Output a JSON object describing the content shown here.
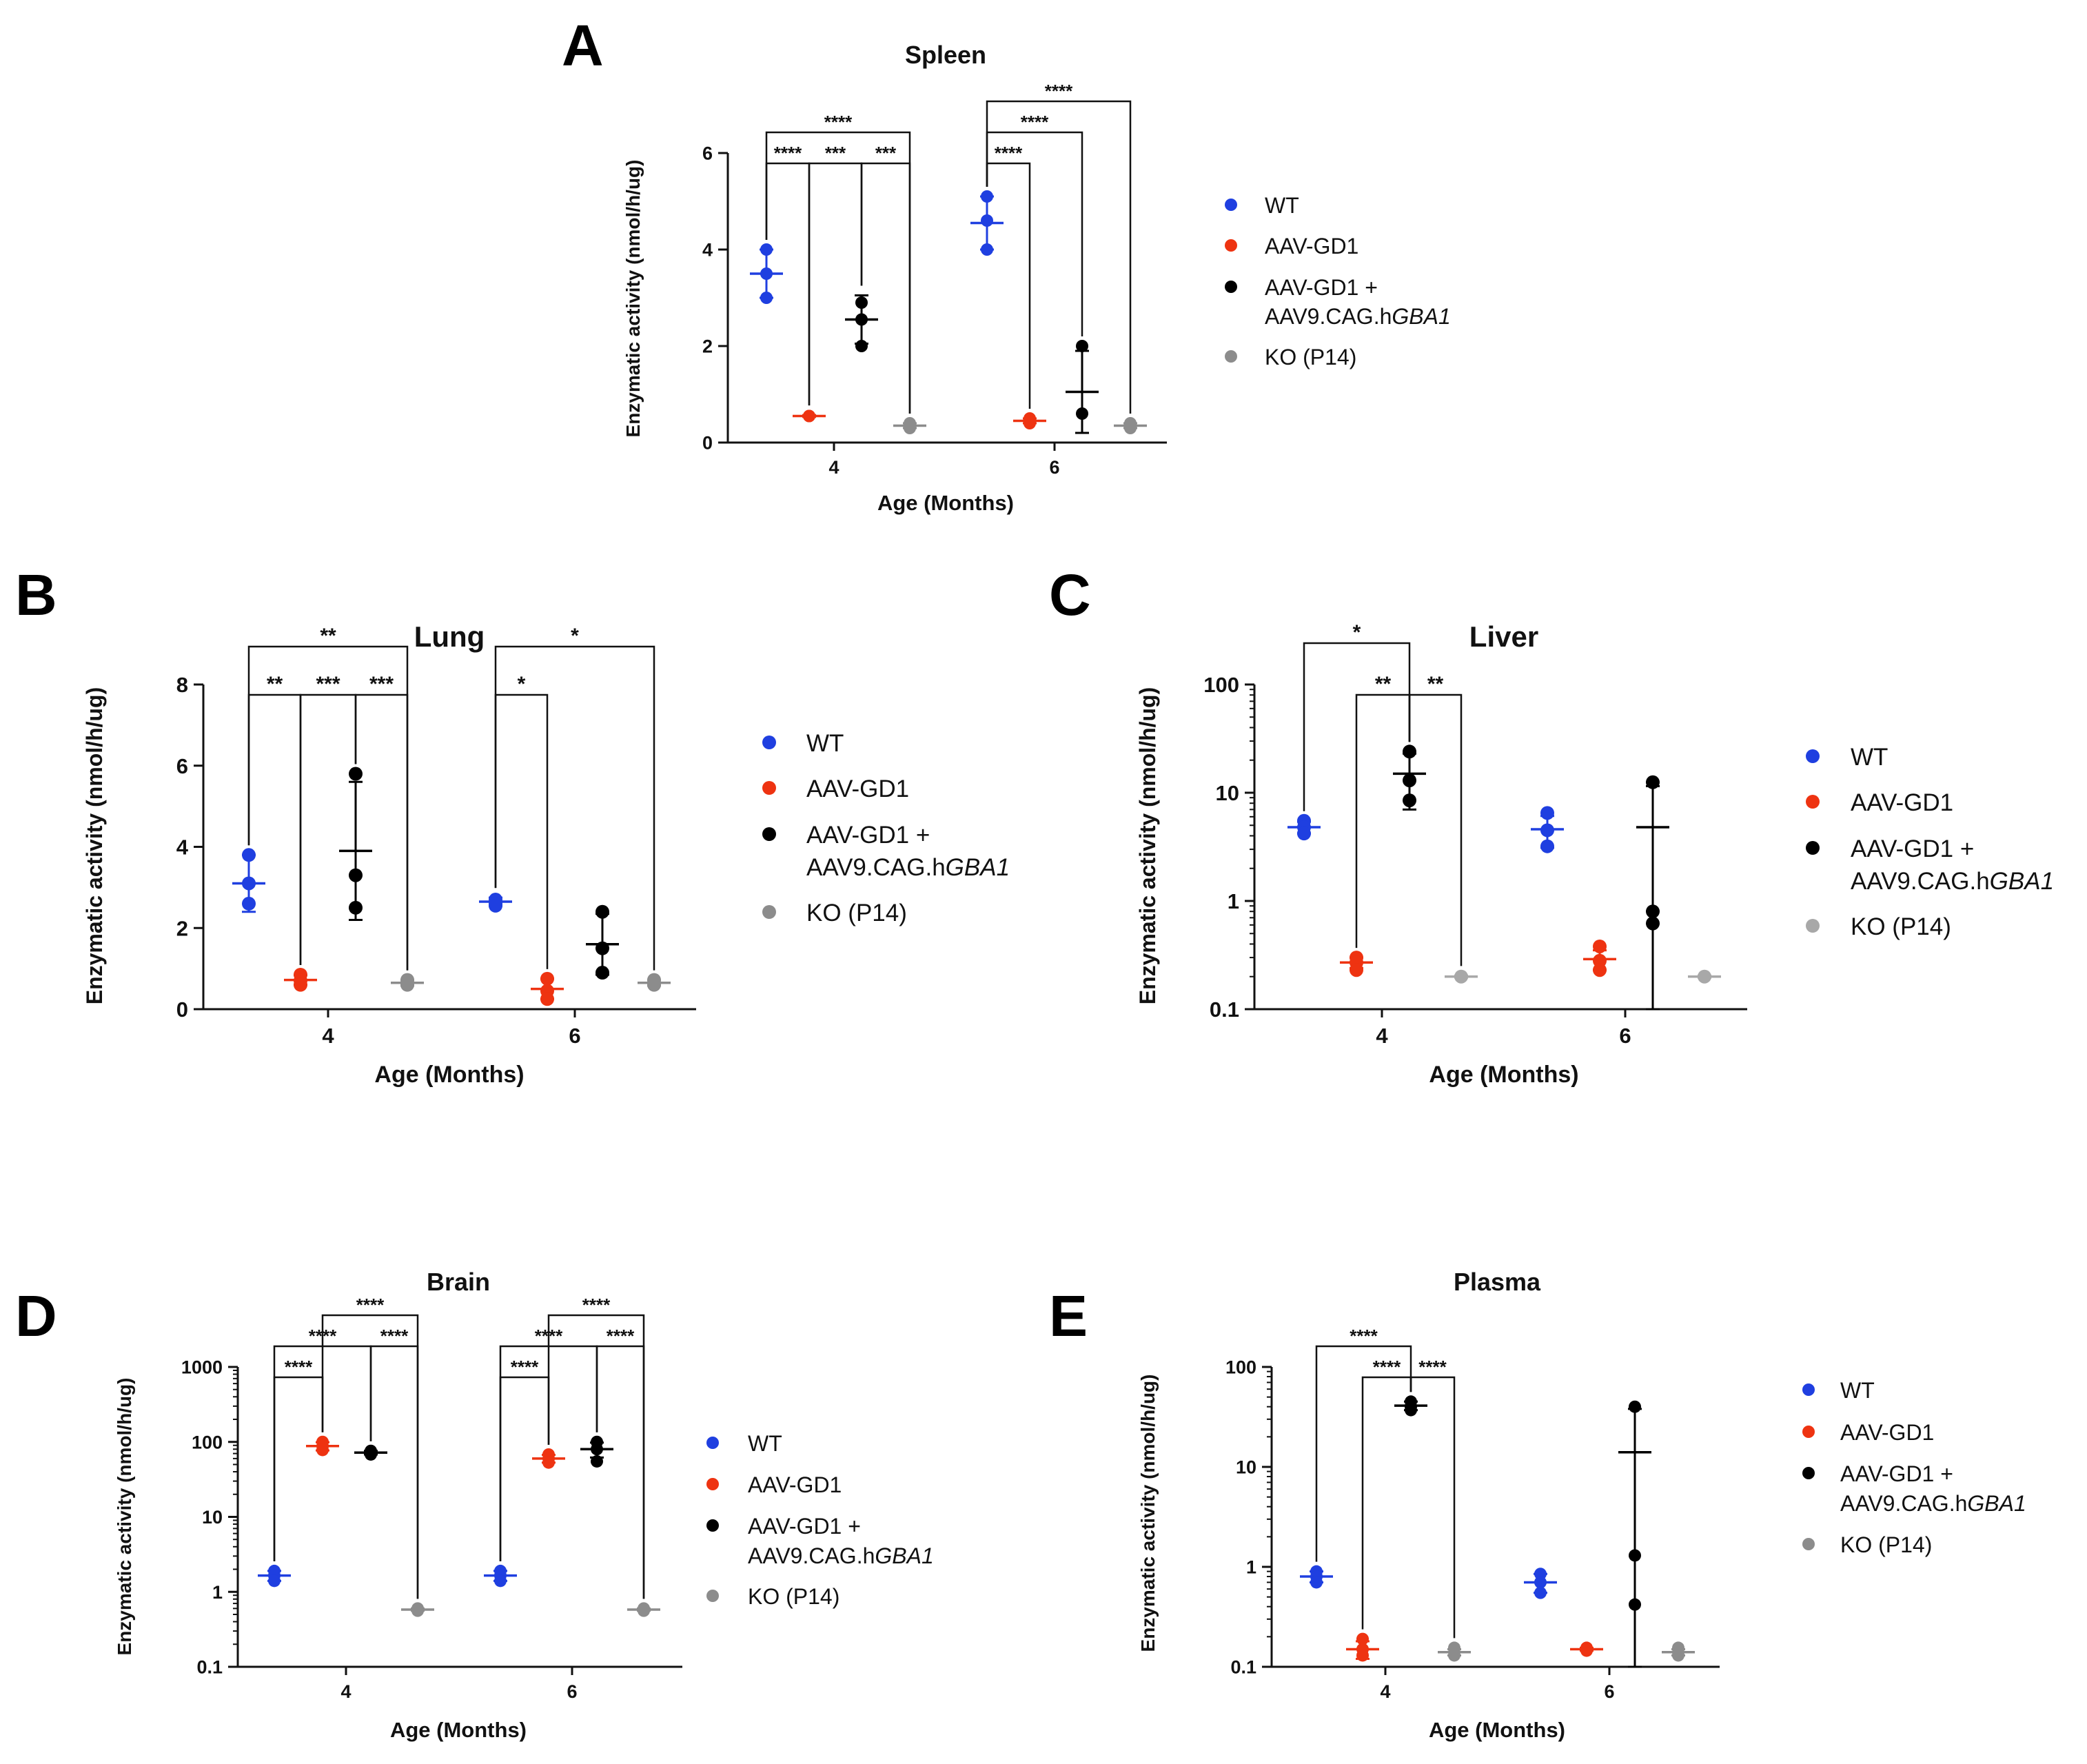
{
  "chart_data": [
    {
      "id": "A",
      "panel": "A",
      "type": "scatter",
      "title": "Spleen",
      "xlabel": "Age (Months)",
      "ylabel": "Enzymatic activity (nmol/h/ug)",
      "yscale": "linear",
      "ylim": [
        0,
        6
      ],
      "yticks": [
        0,
        2,
        4,
        6
      ],
      "ytick_labels": [
        "0",
        "2",
        "4",
        "6"
      ],
      "categories": [
        "4",
        "6"
      ],
      "series": [
        {
          "name": "WT",
          "color": "#1f3fe0",
          "groups": [
            {
              "points": [
                4.0,
                3.5,
                3.0
              ],
              "mean": 3.5,
              "err": 0.5
            },
            {
              "points": [
                5.1,
                4.6,
                4.0
              ],
              "mean": 4.55,
              "err": 0.55
            }
          ]
        },
        {
          "name": "AAV-GD1",
          "color": "#ee3311",
          "groups": [
            {
              "points": [
                0.55,
                0.55,
                0.55
              ],
              "mean": 0.55,
              "err": 0.02
            },
            {
              "points": [
                0.5,
                0.45,
                0.4
              ],
              "mean": 0.45,
              "err": 0.05
            }
          ]
        },
        {
          "name": "AAV-GD1 + AAV9.CAG.hGBA1",
          "color": "#000000",
          "groups": [
            {
              "points": [
                2.9,
                2.55,
                2.0
              ],
              "mean": 2.55,
              "err": 0.5
            },
            {
              "points": [
                2.0,
                0.6
              ],
              "mean": 1.05,
              "err": 0.85
            }
          ]
        },
        {
          "name": "KO (P14)",
          "color": "#8c8c8c",
          "groups": [
            {
              "points": [
                0.4,
                0.35,
                0.3
              ],
              "mean": 0.35,
              "err": 0.05
            },
            {
              "points": [
                0.4,
                0.35,
                0.3
              ],
              "mean": 0.35,
              "err": 0.05
            }
          ]
        }
      ],
      "annotations": [
        {
          "label": "****",
          "from": [
            0,
            0
          ],
          "to": [
            0,
            3
          ],
          "level": 0
        },
        {
          "label": "****",
          "from": [
            0,
            0
          ],
          "to": [
            0,
            1
          ],
          "level": 1
        },
        {
          "label": "***",
          "from": [
            0,
            1
          ],
          "to": [
            0,
            2
          ],
          "level": 1
        },
        {
          "label": "***",
          "from": [
            0,
            2
          ],
          "to": [
            0,
            3
          ],
          "level": 1
        },
        {
          "label": "****",
          "from": [
            1,
            0
          ],
          "to": [
            1,
            3
          ],
          "level": 0
        },
        {
          "label": "****",
          "from": [
            1,
            0
          ],
          "to": [
            1,
            2
          ],
          "level": 1
        },
        {
          "label": "****",
          "from": [
            1,
            0
          ],
          "to": [
            1,
            1
          ],
          "level": 2
        }
      ],
      "legend_labels": [
        "WT",
        "AAV-GD1",
        "AAV-GD1 +",
        "AAV9.CAG.h",
        "GBA1",
        "KO (P14)"
      ]
    },
    {
      "id": "B",
      "panel": "B",
      "type": "scatter",
      "title": "Lung",
      "xlabel": "Age (Months)",
      "ylabel": "Enzymatic activity (nmol/h/ug)",
      "yscale": "linear",
      "ylim": [
        0,
        8
      ],
      "yticks": [
        0,
        2,
        4,
        6,
        8
      ],
      "ytick_labels": [
        "0",
        "2",
        "4",
        "6",
        "8"
      ],
      "categories": [
        "4",
        "6"
      ],
      "series": [
        {
          "name": "WT",
          "color": "#1f3fe0",
          "groups": [
            {
              "points": [
                3.8,
                3.1,
                2.6
              ],
              "mean": 3.1,
              "err": 0.7
            },
            {
              "points": [
                2.7,
                2.6,
                2.55
              ],
              "mean": 2.65,
              "err": 0.1
            }
          ]
        },
        {
          "name": "AAV-GD1",
          "color": "#ee3311",
          "groups": [
            {
              "points": [
                0.85,
                0.7,
                0.6
              ],
              "mean": 0.72,
              "err": 0.12
            },
            {
              "points": [
                0.75,
                0.45,
                0.25
              ],
              "mean": 0.5,
              "err": 0.25
            }
          ]
        },
        {
          "name": "AAV-GD1 + AAV9.CAG.hGBA1",
          "color": "#000000",
          "groups": [
            {
              "points": [
                5.8,
                3.3,
                2.5
              ],
              "mean": 3.9,
              "err": 1.7
            },
            {
              "points": [
                2.4,
                1.5,
                0.9
              ],
              "mean": 1.6,
              "err": 0.75
            }
          ]
        },
        {
          "name": "KO (P14)",
          "color": "#8c8c8c",
          "groups": [
            {
              "points": [
                0.72,
                0.65,
                0.6
              ],
              "mean": 0.65,
              "err": 0.07
            },
            {
              "points": [
                0.72,
                0.65,
                0.6
              ],
              "mean": 0.65,
              "err": 0.07
            }
          ]
        }
      ],
      "annotations": [
        {
          "label": "**",
          "from": [
            0,
            0
          ],
          "to": [
            0,
            3
          ],
          "level": 0
        },
        {
          "label": "**",
          "from": [
            0,
            0
          ],
          "to": [
            0,
            1
          ],
          "level": 1
        },
        {
          "label": "***",
          "from": [
            0,
            1
          ],
          "to": [
            0,
            2
          ],
          "level": 1
        },
        {
          "label": "***",
          "from": [
            0,
            2
          ],
          "to": [
            0,
            3
          ],
          "level": 1
        },
        {
          "label": "*",
          "from": [
            1,
            0
          ],
          "to": [
            1,
            3
          ],
          "level": 0
        },
        {
          "label": "*",
          "from": [
            1,
            0
          ],
          "to": [
            1,
            1
          ],
          "level": 1
        }
      ],
      "legend_labels": [
        "WT",
        "AAV-GD1",
        "AAV-GD1 +",
        "AAV9.CAG.h",
        "GBA1",
        "KO (P14)"
      ]
    },
    {
      "id": "C",
      "panel": "C",
      "type": "scatter",
      "title": "Liver",
      "xlabel": "Age (Months)",
      "ylabel": "Enzymatic activity (nmol/h/ug)",
      "yscale": "log",
      "ylim": [
        0.1,
        100
      ],
      "yticks": [
        0.1,
        1,
        10,
        100
      ],
      "ytick_labels": [
        "0.1",
        "1",
        "10",
        "100"
      ],
      "categories": [
        "4",
        "6"
      ],
      "series": [
        {
          "name": "WT",
          "color": "#1f3fe0",
          "groups": [
            {
              "points": [
                5.5,
                4.8,
                4.2
              ],
              "mean": 4.8,
              "err": 0.6
            },
            {
              "points": [
                6.5,
                4.5,
                3.2
              ],
              "mean": 4.6,
              "err": 1.5
            }
          ]
        },
        {
          "name": "AAV-GD1",
          "color": "#ee3311",
          "groups": [
            {
              "points": [
                0.3,
                0.27,
                0.23
              ],
              "mean": 0.27,
              "err": 0.03
            },
            {
              "points": [
                0.38,
                0.28,
                0.23
              ],
              "mean": 0.29,
              "err": 0.06
            }
          ]
        },
        {
          "name": "AAV-GD1 + AAV9.CAG.hGBA1",
          "color": "#000000",
          "groups": [
            {
              "points": [
                24,
                13,
                8.5
              ],
              "mean": 15,
              "err": 8
            },
            {
              "points": [
                12.5,
                0.8,
                0.62
              ],
              "mean": 4.8,
              "err": 6.7
            }
          ]
        },
        {
          "name": "KO (P14)",
          "color": "#a8a8a8",
          "groups": [
            {
              "points": [
                0.2
              ],
              "mean": 0.2,
              "err": 0.004
            },
            {
              "points": [
                0.2
              ],
              "mean": 0.2,
              "err": 0.004
            }
          ]
        }
      ],
      "annotations": [
        {
          "label": "*",
          "from": [
            0,
            0
          ],
          "to": [
            0,
            2
          ],
          "level": 0
        },
        {
          "label": "**",
          "from": [
            0,
            1
          ],
          "to": [
            0,
            2
          ],
          "level": 1
        },
        {
          "label": "**",
          "from": [
            0,
            2
          ],
          "to": [
            0,
            3
          ],
          "level": 1
        }
      ],
      "legend_labels": [
        "WT",
        "AAV-GD1",
        "AAV-GD1 +",
        "AAV9.CAG.h",
        "GBA1",
        "KO (P14)"
      ]
    },
    {
      "id": "D",
      "panel": "D",
      "type": "scatter",
      "title": "Brain",
      "xlabel": "Age (Months)",
      "ylabel": "Enzymatic activity (nmol/h/ug)",
      "yscale": "log",
      "ylim": [
        0.1,
        1000
      ],
      "yticks": [
        0.1,
        1,
        10,
        100,
        1000
      ],
      "ytick_labels": [
        "0.1",
        "1",
        "10",
        "100",
        "1000"
      ],
      "categories": [
        "4",
        "6"
      ],
      "series": [
        {
          "name": "WT",
          "color": "#1f3fe0",
          "groups": [
            {
              "points": [
                1.9,
                1.65,
                1.4
              ],
              "mean": 1.65,
              "err": 0.25
            },
            {
              "points": [
                1.9,
                1.65,
                1.4
              ],
              "mean": 1.65,
              "err": 0.25
            }
          ]
        },
        {
          "name": "AAV-GD1",
          "color": "#ee3311",
          "groups": [
            {
              "points": [
                100,
                88,
                78
              ],
              "mean": 88,
              "err": 11
            },
            {
              "points": [
                68,
                60,
                53
              ],
              "mean": 60,
              "err": 7
            }
          ]
        },
        {
          "name": "AAV-GD1 + AAV9.CAG.hGBA1",
          "color": "#000000",
          "groups": [
            {
              "points": [
                76,
                72,
                68
              ],
              "mean": 72,
              "err": 4
            },
            {
              "points": [
                100,
                80,
                55
              ],
              "mean": 80,
              "err": 18
            }
          ]
        },
        {
          "name": "KO (P14)",
          "color": "#8c8c8c",
          "groups": [
            {
              "points": [
                0.6,
                0.58,
                0.56
              ],
              "mean": 0.58,
              "err": 0.02
            },
            {
              "points": [
                0.6,
                0.58,
                0.56
              ],
              "mean": 0.58,
              "err": 0.02
            }
          ]
        }
      ],
      "annotations": [
        {
          "label": "****",
          "from": [
            0,
            1
          ],
          "to": [
            0,
            3
          ],
          "level": 0
        },
        {
          "label": "****",
          "from": [
            0,
            0
          ],
          "to": [
            0,
            2
          ],
          "level": 1
        },
        {
          "label": "****",
          "from": [
            0,
            2
          ],
          "to": [
            0,
            3
          ],
          "level": 1
        },
        {
          "label": "****",
          "from": [
            0,
            0
          ],
          "to": [
            0,
            1
          ],
          "level": 2
        },
        {
          "label": "****",
          "from": [
            1,
            1
          ],
          "to": [
            1,
            3
          ],
          "level": 0
        },
        {
          "label": "****",
          "from": [
            1,
            0
          ],
          "to": [
            1,
            2
          ],
          "level": 1
        },
        {
          "label": "****",
          "from": [
            1,
            2
          ],
          "to": [
            1,
            3
          ],
          "level": 1
        },
        {
          "label": "****",
          "from": [
            1,
            0
          ],
          "to": [
            1,
            1
          ],
          "level": 2
        }
      ],
      "legend_labels": [
        "WT",
        "AAV-GD1",
        "AAV-GD1 +",
        "AAV9.CAG.h",
        "GBA1",
        "KO (P14)"
      ]
    },
    {
      "id": "E",
      "panel": "E",
      "type": "scatter",
      "title": "Plasma",
      "xlabel": "Age (Months)",
      "ylabel": "Enzymatic activity (nmol/h/ug)",
      "yscale": "log",
      "ylim": [
        0.1,
        100
      ],
      "yticks": [
        0.1,
        1,
        10,
        100
      ],
      "ytick_labels": [
        "0.1",
        "1",
        "10",
        "100"
      ],
      "categories": [
        "4",
        "6"
      ],
      "series": [
        {
          "name": "WT",
          "color": "#1f3fe0",
          "groups": [
            {
              "points": [
                0.9,
                0.8,
                0.7
              ],
              "mean": 0.8,
              "err": 0.1
            },
            {
              "points": [
                0.85,
                0.7,
                0.55
              ],
              "mean": 0.7,
              "err": 0.15
            }
          ]
        },
        {
          "name": "AAV-GD1",
          "color": "#ee3311",
          "groups": [
            {
              "points": [
                0.19,
                0.15,
                0.13
              ],
              "mean": 0.15,
              "err": 0.03
            },
            {
              "points": [
                0.155,
                0.15,
                0.145
              ],
              "mean": 0.15,
              "err": 0.005
            }
          ]
        },
        {
          "name": "AAV-GD1 + AAV9.CAG.hGBA1",
          "color": "#000000",
          "groups": [
            {
              "points": [
                45,
                40,
                37
              ],
              "mean": 41,
              "err": 4
            },
            {
              "points": [
                40,
                1.3,
                0.42
              ],
              "mean": 14,
              "err": 24
            }
          ]
        },
        {
          "name": "KO (P14)",
          "color": "#8c8c8c",
          "groups": [
            {
              "points": [
                0.155,
                0.14,
                0.13
              ],
              "mean": 0.14,
              "err": 0.01
            },
            {
              "points": [
                0.155,
                0.14,
                0.13
              ],
              "mean": 0.14,
              "err": 0.01
            }
          ]
        }
      ],
      "annotations": [
        {
          "label": "****",
          "from": [
            0,
            0
          ],
          "to": [
            0,
            2
          ],
          "level": 0
        },
        {
          "label": "****",
          "from": [
            0,
            1
          ],
          "to": [
            0,
            2
          ],
          "level": 1
        },
        {
          "label": "****",
          "from": [
            0,
            2
          ],
          "to": [
            0,
            3
          ],
          "level": 1
        }
      ],
      "legend_labels": [
        "WT",
        "AAV-GD1",
        "AAV-GD1 +",
        "AAV9.CAG.h",
        "GBA1",
        "KO (P14)"
      ]
    }
  ]
}
